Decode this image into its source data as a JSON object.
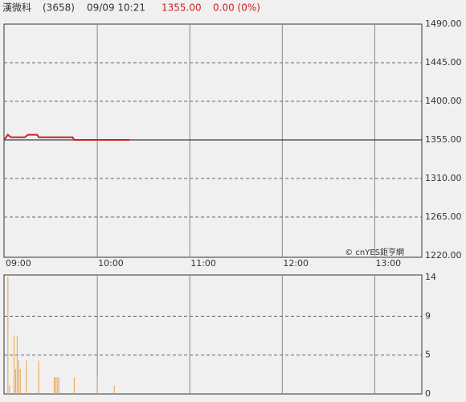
{
  "header": {
    "name": "漢微科",
    "code": "(3658)",
    "time": "09/09 10:21",
    "price": "1355.00",
    "change": "0.00 (0%)"
  },
  "watermark": "© cnYES鉅亨網",
  "chart_data": [
    {
      "type": "line",
      "x": [
        "09:00",
        "09:02",
        "09:04",
        "09:13",
        "09:15",
        "09:21",
        "09:22",
        "09:44",
        "09:45",
        "10:21"
      ],
      "values": [
        1356,
        1361,
        1358,
        1358,
        1361,
        1361,
        1358,
        1358,
        1355,
        1355
      ],
      "color": "#cc2222",
      "reference": 1355,
      "xlim": [
        "09:00",
        "13:30"
      ],
      "xticks": [
        "09:00",
        "10:00",
        "11:00",
        "12:00",
        "13:00"
      ],
      "ylim": [
        1220,
        1490
      ],
      "yticks": [
        {
          "value": 1220,
          "label": "1220.00"
        },
        {
          "value": 1265,
          "label": "1265.00"
        },
        {
          "value": 1310,
          "label": "1310.00"
        },
        {
          "value": 1355,
          "label": "1355.00"
        },
        {
          "value": 1400,
          "label": "1400.00"
        },
        {
          "value": 1445,
          "label": "1445.00"
        },
        {
          "value": 1490,
          "label": "1490.00"
        }
      ],
      "grid": true
    },
    {
      "type": "bar",
      "x": [
        "09:02",
        "09:03",
        "09:06",
        "09:07",
        "09:08",
        "09:09",
        "09:10",
        "09:14",
        "09:22",
        "09:32",
        "09:33",
        "09:34",
        "09:35",
        "09:45",
        "10:00",
        "10:11"
      ],
      "values": [
        14,
        1,
        7,
        3,
        7,
        4,
        3,
        4,
        4,
        2,
        2,
        2,
        2,
        2,
        2,
        1
      ],
      "color": "#f0a040",
      "xlim": [
        "09:00",
        "13:30"
      ],
      "xticks": [
        "09:00",
        "10:00",
        "11:00",
        "12:00",
        "13:00"
      ],
      "ylim": [
        0,
        14
      ],
      "yticks": [
        0,
        {
          "value": 4.67,
          "label": "5"
        },
        {
          "value": 9.33,
          "label": "9"
        },
        14
      ],
      "grid": true
    }
  ]
}
